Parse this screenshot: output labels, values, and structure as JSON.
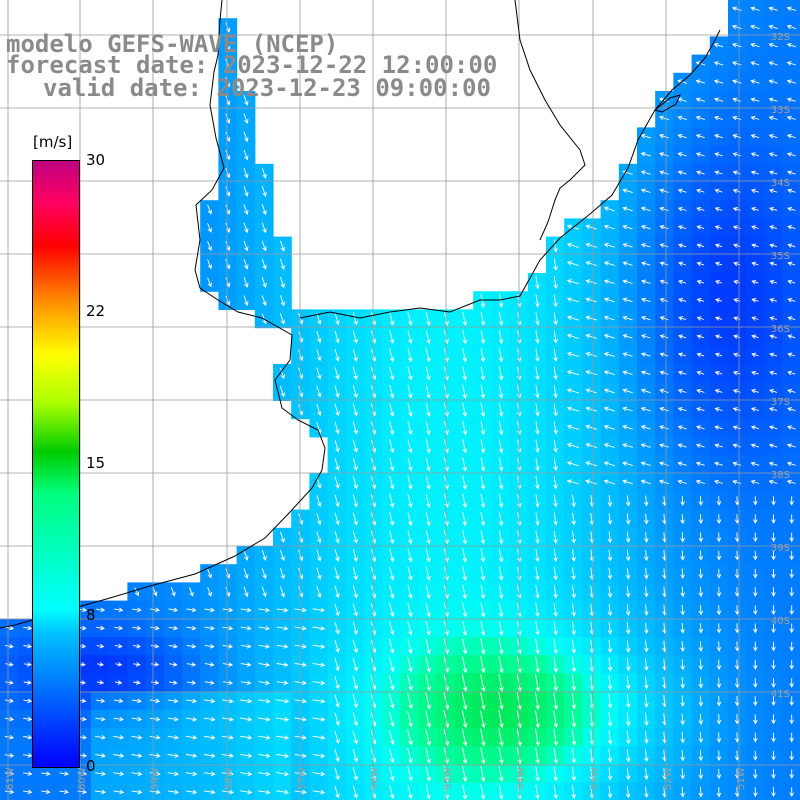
{
  "title": {
    "line1": "modelo GEFS-WAVE (NCEP)",
    "line2": "forecast date: 2023-12-22 12:00:00",
    "line3": "valid date: 2023-12-23 09:00:00"
  },
  "colorbar": {
    "unit": "[m/s]",
    "ticks": [
      "30",
      "22",
      "15",
      "8",
      "0"
    ],
    "colors": [
      "#0000ff",
      "#00c0ff",
      "#00ffff",
      "#00ff80",
      "#00cc00",
      "#ffff00",
      "#ff9900",
      "#ff0000",
      "#c00080"
    ]
  },
  "map": {
    "lat_labels": [
      "32S",
      "33S",
      "34S",
      "35S",
      "36S",
      "37S",
      "38S",
      "39S",
      "40S",
      "41S"
    ],
    "lon_labels": [
      "61W",
      "60W",
      "59W",
      "58W",
      "57W",
      "56W",
      "55W",
      "54W",
      "53W",
      "52W",
      "51W"
    ],
    "ocean_color": "#1a6cf0",
    "land_color": "#ffffff"
  }
}
